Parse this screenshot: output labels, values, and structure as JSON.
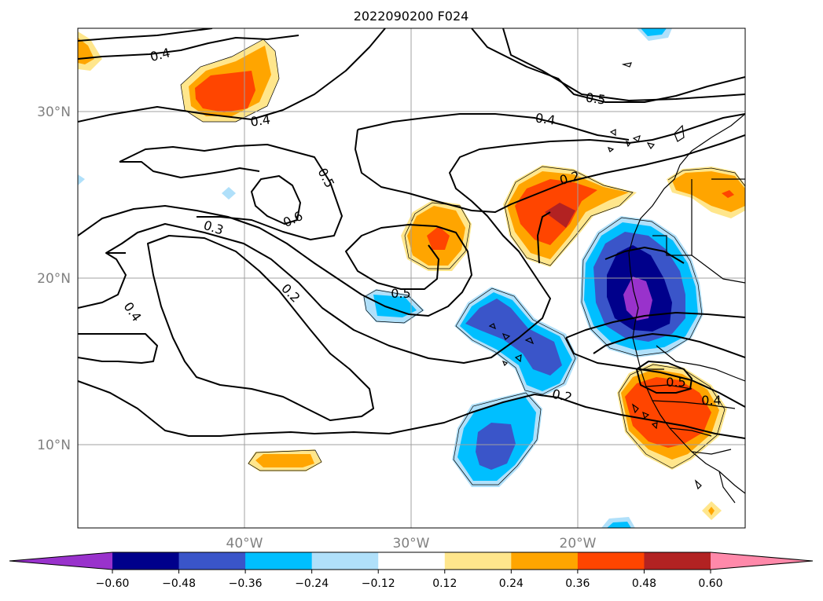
{
  "title": "2022090200 F024",
  "map": {
    "lat_ticks": [
      "30°N",
      "20°N",
      "10°N"
    ],
    "lon_ticks": [
      "40°W",
      "30°W",
      "20°W"
    ],
    "grid": true,
    "projection": "plate-carree"
  },
  "contours": {
    "color": "#000000",
    "labels": [
      "0.4",
      "0.4",
      "0.5",
      "0.4",
      "0.5",
      "0.6",
      "0.3",
      "0.2",
      "0.4",
      "0.2",
      "0.5",
      "0.2",
      "0.5",
      "0.4"
    ]
  },
  "colorbar": {
    "orientation": "horizontal",
    "extend": "both",
    "levels": [
      -0.6,
      -0.48,
      -0.36,
      -0.24,
      -0.12,
      0.12,
      0.24,
      0.36,
      0.48,
      0.6
    ],
    "tick_labels": [
      "−0.60",
      "−0.48",
      "−0.36",
      "−0.24",
      "−0.12",
      "0.12",
      "0.24",
      "0.36",
      "0.48",
      "0.60"
    ],
    "colors": [
      "#9932cc",
      "#00008b",
      "#3a55c9",
      "#00bfff",
      "#b0e0fa",
      "#ffffff",
      "#ffe68c",
      "#ffa500",
      "#ff4500",
      "#b22222",
      "#ff89aa"
    ]
  }
}
